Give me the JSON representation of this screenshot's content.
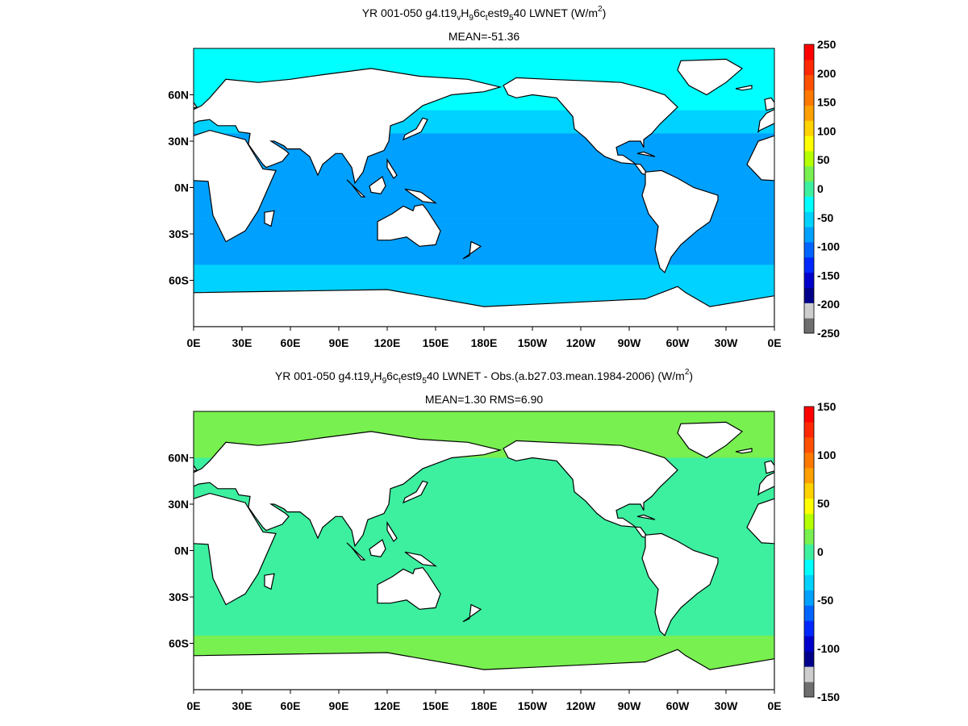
{
  "chart_data": [
    {
      "type": "heatmap",
      "title": {
        "pre": "YR 001-050 g4.t19",
        "sub1": "v",
        "mid1": "H",
        "sub2": "9",
        "mid2": "6c",
        "sub3": "t",
        "mid3": "est9",
        "sub4": "5",
        "post": "40  LWNET (W/m",
        "sup": "2",
        "close": ")"
      },
      "subtitle": "MEAN=-51.36",
      "x_ticks": [
        "0E",
        "30E",
        "60E",
        "90E",
        "120E",
        "150E",
        "180E",
        "150W",
        "120W",
        "90W",
        "60W",
        "30W",
        "0E"
      ],
      "y_ticks": [
        "60N",
        "30N",
        "0N",
        "30S",
        "60S"
      ],
      "xlim": [
        0,
        360
      ],
      "ylim": [
        -90,
        90
      ],
      "colorbar": {
        "ticks": [
          "250",
          "200",
          "150",
          "100",
          "50",
          "0",
          "-50",
          "-100",
          "-150",
          "-200",
          "-250"
        ],
        "range": [
          -250,
          250
        ],
        "colors": [
          "#6e6e6e",
          "#cdcdcd",
          "#00008b",
          "#0000cd",
          "#0028ff",
          "#0064ff",
          "#00a0ff",
          "#00d2ff",
          "#00ffff",
          "#3cf0a0",
          "#78f050",
          "#b4ff00",
          "#ffff00",
          "#ffd200",
          "#ffa000",
          "#ff7800",
          "#ff5000",
          "#ff2800",
          "#ff0000"
        ]
      },
      "ocean_field": {
        "base_value": -55,
        "zones": [
          {
            "lat": [
              50,
              90
            ],
            "value": -30
          },
          {
            "lat": [
              -20,
              35
            ],
            "value": -75
          },
          {
            "lat": [
              -50,
              -20
            ],
            "value": -70
          },
          {
            "lat": [
              -90,
              -50
            ],
            "value": -45
          }
        ]
      }
    },
    {
      "type": "heatmap",
      "title": {
        "pre": "YR 001-050 g4.t19",
        "sub1": "v",
        "mid1": "H",
        "sub2": "9",
        "mid2": "6c",
        "sub3": "t",
        "mid3": "est9",
        "sub4": "5",
        "post": "40 LWNET - Obs.(a.b27.03.mean.1984-2006) (W/m",
        "sup": "2",
        "close": ")"
      },
      "subtitle": "MEAN=1.30 RMS=6.90",
      "x_ticks": [
        "0E",
        "30E",
        "60E",
        "90E",
        "120E",
        "150E",
        "180E",
        "150W",
        "120W",
        "90W",
        "60W",
        "30W",
        "0E"
      ],
      "y_ticks": [
        "60N",
        "30N",
        "0N",
        "30S",
        "60S"
      ],
      "xlim": [
        0,
        360
      ],
      "ylim": [
        -90,
        90
      ],
      "colorbar": {
        "ticks": [
          "150",
          "100",
          "50",
          "0",
          "-50",
          "-100",
          "-150"
        ],
        "range": [
          -150,
          150
        ],
        "colors": [
          "#6e6e6e",
          "#cdcdcd",
          "#00008b",
          "#0000cd",
          "#0028ff",
          "#0064ff",
          "#00a0ff",
          "#00d2ff",
          "#00ffff",
          "#3cf0a0",
          "#78f050",
          "#b4ff00",
          "#ffff00",
          "#ffd200",
          "#ffa000",
          "#ff7800",
          "#ff5000",
          "#ff2800",
          "#ff0000"
        ]
      },
      "ocean_field": {
        "base_value": 5,
        "zones": [
          {
            "lat": [
              60,
              90
            ],
            "value": 12
          },
          {
            "lat": [
              -15,
              15
            ],
            "value": 3
          },
          {
            "lat": [
              -90,
              -55
            ],
            "value": 10
          }
        ]
      }
    }
  ]
}
